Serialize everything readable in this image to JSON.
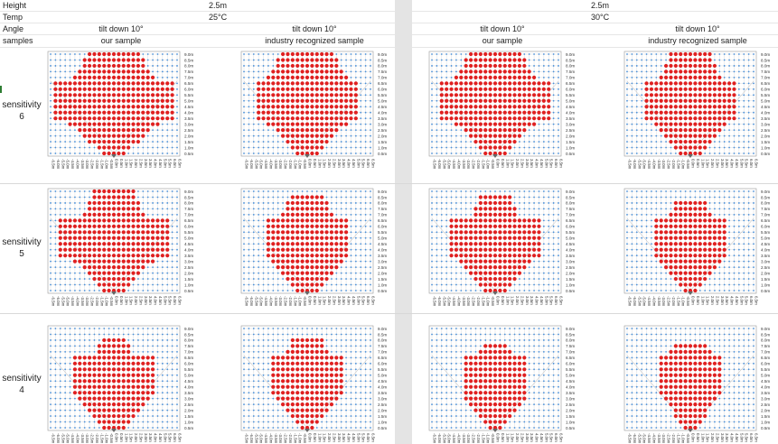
{
  "header": {
    "height_label": "Height",
    "temp_label": "Temp",
    "angle_label": "Angle",
    "samples_label": "samples"
  },
  "groups": [
    {
      "height": "2.5m",
      "temp": "25°C"
    },
    {
      "height": "2.5m",
      "temp": "30°C"
    }
  ],
  "columns": [
    {
      "angle": "tilt down 10°",
      "sample": "our sample"
    },
    {
      "angle": "tilt down 10°",
      "sample": "industry recognized sample"
    },
    {
      "angle": "tilt down 10°",
      "sample": "our sample"
    },
    {
      "angle": "tilt down 10°",
      "sample": "industry recognized sample"
    }
  ],
  "rows": [
    {
      "label_line1": "sensitivity",
      "label_line2": "6"
    },
    {
      "label_line1": "sensitivity",
      "label_line2": "5"
    },
    {
      "label_line1": "sensitivity",
      "label_line2": "4"
    }
  ],
  "plot_axes": {
    "y_ticks": [
      "9.0m",
      "8.5m",
      "8.0m",
      "7.5m",
      "7.0m",
      "6.5m",
      "6.0m",
      "5.5m",
      "5.0m",
      "4.5m",
      "4.0m",
      "3.5m",
      "3.0m",
      "2.5m",
      "2.0m",
      "1.5m",
      "1.0m",
      "0.5m"
    ],
    "x_ticks": [
      "-6.5m",
      "-6.0m",
      "-5.5m",
      "-5.0m",
      "-4.5m",
      "-4.0m",
      "-3.5m",
      "-3.0m",
      "-2.5m",
      "-2.0m",
      "-1.5m",
      "-1.0m",
      "-0.5m",
      "0.0m",
      "0.5m",
      "1.0m",
      "1.5m",
      "2.0m",
      "2.5m",
      "3.0m",
      "3.5m",
      "4.0m",
      "4.5m",
      "5.0m",
      "5.5m",
      "6.0m",
      "6.5m"
    ]
  },
  "colors": {
    "detected": "#e02020",
    "undetected": "#4a90d9",
    "grid": "#c8c8c8"
  },
  "coverage": [
    [
      {
        "max": 9.0,
        "w_top": 4.5,
        "w_mid": 6.0,
        "w_low": 4.0
      },
      {
        "max": 9.0,
        "w_top": 4.5,
        "w_mid": 5.0,
        "w_low": 3.5
      },
      {
        "max": 9.0,
        "w_top": 4.5,
        "w_mid": 5.5,
        "w_low": 3.5
      },
      {
        "max": 9.0,
        "w_top": 3.5,
        "w_mid": 4.5,
        "w_low": 3.0
      }
    ],
    [
      {
        "max": 9.0,
        "w_top": 3.5,
        "w_mid": 5.5,
        "w_low": 3.5
      },
      {
        "max": 8.5,
        "w_top": 3.0,
        "w_mid": 4.0,
        "w_low": 3.0
      },
      {
        "max": 8.5,
        "w_top": 2.5,
        "w_mid": 4.5,
        "w_low": 3.0
      },
      {
        "max": 8.0,
        "w_top": 2.5,
        "w_mid": 3.5,
        "w_low": 2.5
      }
    ],
    [
      {
        "max": 8.0,
        "w_top": 2.0,
        "w_mid": 4.0,
        "w_low": 3.0
      },
      {
        "max": 8.0,
        "w_top": 2.5,
        "w_mid": 3.5,
        "w_low": 2.5
      },
      {
        "max": 7.5,
        "w_top": 2.0,
        "w_mid": 3.0,
        "w_low": 2.5
      },
      {
        "max": 7.5,
        "w_top": 2.5,
        "w_mid": 3.0,
        "w_low": 2.0
      }
    ]
  ]
}
